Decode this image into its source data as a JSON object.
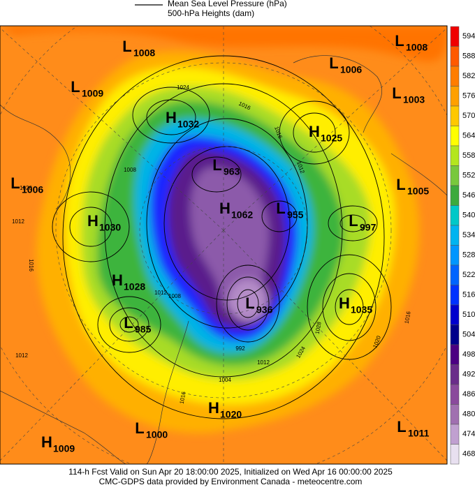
{
  "legend": {
    "items": [
      "Mean Sea Level Pressure (hPa)",
      "500-hPa Heights (dam)"
    ]
  },
  "centers": [
    {
      "type": "L",
      "value": "1008"
    },
    {
      "type": "L",
      "value": "1009"
    },
    {
      "type": "H",
      "value": "1032"
    },
    {
      "type": "L",
      "value": "1006"
    },
    {
      "type": "H",
      "value": "1025"
    },
    {
      "type": "L",
      "value": "1003"
    },
    {
      "type": "L",
      "value": "1008"
    },
    {
      "type": "L",
      "value": "1006"
    },
    {
      "type": "L",
      "value": "963"
    },
    {
      "type": "L",
      "value": "1005"
    },
    {
      "type": "H",
      "value": "1030"
    },
    {
      "type": "H",
      "value": "1062"
    },
    {
      "type": "L",
      "value": "955"
    },
    {
      "type": "L",
      "value": "997"
    },
    {
      "type": "H",
      "value": "1028"
    },
    {
      "type": "L",
      "value": "936"
    },
    {
      "type": "H",
      "value": "1035"
    },
    {
      "type": "L",
      "value": "985"
    },
    {
      "type": "H",
      "value": "1020"
    },
    {
      "type": "L",
      "value": "1000"
    },
    {
      "type": "H",
      "value": "1009"
    },
    {
      "type": "L",
      "value": "1011"
    }
  ],
  "isobar_labels": [
    "1024",
    "1016",
    "1016",
    "1012",
    "1008",
    "1020",
    "1012",
    "1016",
    "1012",
    "1008",
    "1028",
    "1020",
    "1016",
    "1024",
    "992",
    "1004",
    "1012",
    "1012",
    "1016"
  ],
  "colorbar": {
    "labels": [
      594,
      588,
      582,
      576,
      570,
      564,
      558,
      552,
      546,
      540,
      534,
      528,
      522,
      516,
      510,
      504,
      498,
      492,
      486,
      480,
      474,
      468
    ]
  },
  "footer": {
    "lines": [
      "114-h Fcst Valid on Sun Apr 20 18:00:00 2025, Initialized on Wed Apr 16 00:00:00 2025",
      "CMC-GDPS data provided by Environment Canada - meteocentre.com"
    ]
  }
}
